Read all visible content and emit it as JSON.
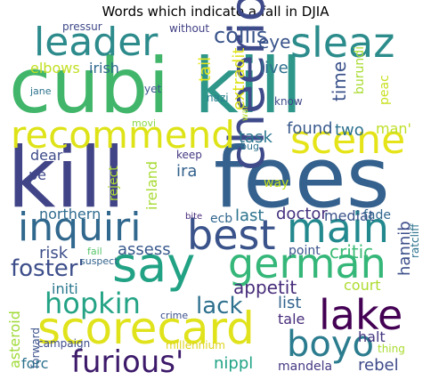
{
  "chart_data": {
    "type": "wordcloud",
    "title": "Words which indicate a fall in DJIA",
    "words": [
      {
        "text": "cubi",
        "color": "#41b66a"
      },
      {
        "text": "kill",
        "color": "#2f968a"
      },
      {
        "text": "kill",
        "color": "#414487"
      },
      {
        "text": "fees",
        "color": "#34618d"
      },
      {
        "text": "leader",
        "color": "#2d8b8c"
      },
      {
        "text": "sleaz",
        "color": "#2c8c8c"
      },
      {
        "text": "cheerio",
        "color": "#3e4a89"
      },
      {
        "text": "recommend",
        "color": "#dee318"
      },
      {
        "text": "scene",
        "color": "#e5e419"
      },
      {
        "text": "inquiri",
        "color": "#31688e"
      },
      {
        "text": "main",
        "color": "#23898e"
      },
      {
        "text": "best",
        "color": "#3a538b"
      },
      {
        "text": "say",
        "color": "#22a284"
      },
      {
        "text": "german",
        "color": "#35b779"
      },
      {
        "text": "hopkin",
        "color": "#24a385"
      },
      {
        "text": "scorecard",
        "color": "#e0e31b"
      },
      {
        "text": "lake",
        "color": "#440154"
      },
      {
        "text": "boyo",
        "color": "#2b7c8e"
      },
      {
        "text": "furious'",
        "color": "#3d1a6a"
      },
      {
        "text": "collis",
        "color": "#3a558b"
      },
      {
        "text": "eye",
        "color": "#3a548b"
      },
      {
        "text": "extradit",
        "color": "#dfe318"
      },
      {
        "text": "tail",
        "color": "#e6e61a"
      },
      {
        "text": "elbows",
        "color": "#c2df23"
      },
      {
        "text": "irish",
        "color": "#30698e"
      },
      {
        "text": "live",
        "color": "#2d6f8e"
      },
      {
        "text": "burundi",
        "color": "#aadc32"
      },
      {
        "text": "time",
        "color": "#3b528b"
      },
      {
        "text": "peac",
        "color": "#c8e020"
      },
      {
        "text": "man'",
        "color": "#bddf26"
      },
      {
        "text": "two",
        "color": "#2d718e"
      },
      {
        "text": "found",
        "color": "#38598c"
      },
      {
        "text": "task",
        "color": "#2a768e"
      },
      {
        "text": "dear",
        "color": "#3e4c8a"
      },
      {
        "text": "pe",
        "color": "#3f4889"
      },
      {
        "text": "reject",
        "color": "#addc30"
      },
      {
        "text": "ireland",
        "color": "#a8db34"
      },
      {
        "text": "ira",
        "color": "#33628d"
      },
      {
        "text": "keep",
        "color": "#453882"
      },
      {
        "text": "way",
        "color": "#c5e021"
      },
      {
        "text": "mediat",
        "color": "#3b528b"
      },
      {
        "text": "northern",
        "color": "#2f6b8e"
      },
      {
        "text": "last",
        "color": "#2c738e"
      },
      {
        "text": "doctor",
        "color": "#46327e"
      },
      {
        "text": "fade",
        "color": "#31668e"
      },
      {
        "text": "ratcliff",
        "color": "#2c728e"
      },
      {
        "text": "risk",
        "color": "#3c4f8a"
      },
      {
        "text": "assess",
        "color": "#38598c"
      },
      {
        "text": "critic",
        "color": "#3bbb75"
      },
      {
        "text": "hannib",
        "color": "#3c4f8a"
      },
      {
        "text": "foster'",
        "color": "#3d4e8a"
      },
      {
        "text": "point",
        "color": "#3a548c"
      },
      {
        "text": "appetit",
        "color": "#472c7a"
      },
      {
        "text": "court",
        "color": "#addc30"
      },
      {
        "text": "lack",
        "color": "#2d708e"
      },
      {
        "text": "list",
        "color": "#33638d"
      },
      {
        "text": "tale",
        "color": "#472d7b"
      },
      {
        "text": "asteroid",
        "color": "#a0da39"
      },
      {
        "text": "initi",
        "color": "#2a788e"
      },
      {
        "text": "forward",
        "color": "#3b528b"
      },
      {
        "text": "halt",
        "color": "#453781"
      },
      {
        "text": "forc",
        "color": "#2c728e"
      },
      {
        "text": "nippl",
        "color": "#20a386"
      },
      {
        "text": "mandela",
        "color": "#443983"
      },
      {
        "text": "rebel",
        "color": "#3e4a89"
      },
      {
        "text": "pressur",
        "color": "#3e4989"
      },
      {
        "text": "without",
        "color": "#424086"
      },
      {
        "text": "jane",
        "color": "#2c738e"
      },
      {
        "text": "yet",
        "color": "#3a548c"
      },
      {
        "text": "nazi",
        "color": "#27808e"
      },
      {
        "text": "movi",
        "color": "#8bd646"
      },
      {
        "text": "war",
        "color": "#b5de2b"
      },
      {
        "text": "know",
        "color": "#3e4a89"
      },
      {
        "text": "bug",
        "color": "#2c728e"
      },
      {
        "text": "bite",
        "color": "#472a7a"
      },
      {
        "text": "ecb",
        "color": "#31678e"
      },
      {
        "text": "fail",
        "color": "#54c568"
      },
      {
        "text": "suspect",
        "color": "#33638d"
      },
      {
        "text": "crime",
        "color": "#3b518b"
      },
      {
        "text": "campaign",
        "color": "#3e4c8a"
      },
      {
        "text": "millennium",
        "color": "#ddd31c"
      },
      {
        "text": "thing",
        "color": "#aadc32"
      }
    ]
  }
}
